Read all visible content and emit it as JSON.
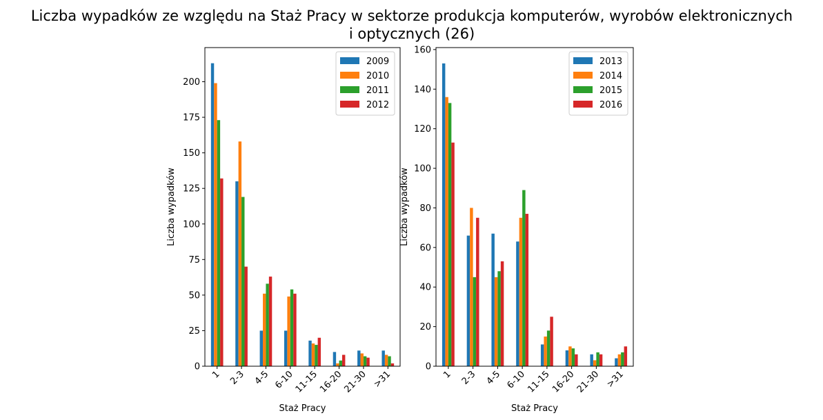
{
  "title_line1": "Liczba wypadków ze względu na Staż Pracy w sektorze produkcja komputerów, wyrobów elektronicznych",
  "title_line2": "i optycznych (26)",
  "chart_data": [
    {
      "type": "bar",
      "xlabel": "Staż Pracy",
      "ylabel": "Liczba wypadków",
      "categories": [
        "1",
        "2-3",
        "4-5",
        "6-10",
        "11-15",
        "16-20",
        "21-30",
        ">31"
      ],
      "ylim": [
        0,
        224
      ],
      "yticks": [
        0,
        25,
        50,
        75,
        100,
        125,
        150,
        175,
        200
      ],
      "legend_position": "top-right",
      "grid": false,
      "series": [
        {
          "name": "2009",
          "color": "#1f77b4",
          "values": [
            213,
            130,
            25,
            25,
            18,
            10,
            11,
            11
          ]
        },
        {
          "name": "2010",
          "color": "#ff7f0e",
          "values": [
            199,
            158,
            51,
            49,
            16,
            2,
            9,
            8
          ]
        },
        {
          "name": "2011",
          "color": "#2ca02c",
          "values": [
            173,
            119,
            58,
            54,
            15,
            4,
            7,
            7
          ]
        },
        {
          "name": "2012",
          "color": "#d62728",
          "values": [
            132,
            70,
            63,
            51,
            20,
            8,
            6,
            2
          ]
        }
      ]
    },
    {
      "type": "bar",
      "xlabel": "Staż Pracy",
      "ylabel": "Liczba wypadków",
      "categories": [
        "1",
        "2-3",
        "4-5",
        "6-10",
        "11-15",
        "16-20",
        "21-30",
        ">31"
      ],
      "ylim": [
        0,
        161
      ],
      "yticks": [
        0,
        20,
        40,
        60,
        80,
        100,
        120,
        140,
        160
      ],
      "legend_position": "top-right",
      "grid": false,
      "series": [
        {
          "name": "2013",
          "color": "#1f77b4",
          "values": [
            153,
            66,
            67,
            63,
            11,
            8,
            6,
            4
          ]
        },
        {
          "name": "2014",
          "color": "#ff7f0e",
          "values": [
            136,
            80,
            45,
            75,
            15,
            10,
            3,
            6
          ]
        },
        {
          "name": "2015",
          "color": "#2ca02c",
          "values": [
            133,
            45,
            48,
            89,
            18,
            9,
            7,
            7
          ]
        },
        {
          "name": "2016",
          "color": "#d62728",
          "values": [
            113,
            75,
            53,
            77,
            25,
            6,
            6,
            10
          ]
        }
      ]
    }
  ]
}
